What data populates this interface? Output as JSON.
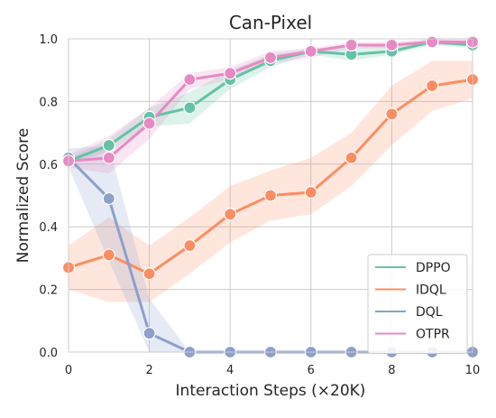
{
  "chart_data": {
    "type": "line",
    "title": "Can-Pixel",
    "xlabel": "Interaction Steps (×20K)",
    "ylabel": "Normalized Score",
    "xlim": [
      0,
      10
    ],
    "ylim": [
      0,
      1.0
    ],
    "x_ticks": [
      "0",
      "2",
      "4",
      "6",
      "8",
      "10"
    ],
    "y_ticks": [
      "0.0",
      "0.2",
      "0.4",
      "0.6",
      "0.8",
      "1.0"
    ],
    "x_tick_values": [
      0,
      2,
      4,
      6,
      8,
      10
    ],
    "y_tick_values": [
      0,
      0.2,
      0.4,
      0.6,
      0.8,
      1.0
    ],
    "grid": true,
    "legend_position": "lower-right",
    "x": [
      0,
      1,
      2,
      3,
      4,
      5,
      6,
      7,
      8,
      9,
      10
    ],
    "series": [
      {
        "name": "DPPO",
        "color": "#66c2a5",
        "values": [
          0.61,
          0.66,
          0.75,
          0.78,
          0.87,
          0.93,
          0.96,
          0.95,
          0.96,
          0.99,
          0.98
        ],
        "lower": [
          0.6,
          0.64,
          0.72,
          0.73,
          0.84,
          0.91,
          0.95,
          0.93,
          0.95,
          0.98,
          0.97
        ],
        "upper": [
          0.62,
          0.68,
          0.78,
          0.83,
          0.9,
          0.95,
          0.97,
          0.97,
          0.98,
          1.0,
          0.99
        ]
      },
      {
        "name": "IDQL",
        "color": "#fc8d62",
        "values": [
          0.27,
          0.31,
          0.25,
          0.34,
          0.44,
          0.5,
          0.51,
          0.62,
          0.76,
          0.85,
          0.87
        ],
        "lower": [
          0.2,
          0.16,
          0.16,
          0.25,
          0.35,
          0.42,
          0.44,
          0.53,
          0.66,
          0.77,
          0.81
        ],
        "upper": [
          0.34,
          0.43,
          0.34,
          0.43,
          0.53,
          0.58,
          0.62,
          0.7,
          0.85,
          0.93,
          0.93
        ]
      },
      {
        "name": "DQL",
        "color": "#8da0cb",
        "values": [
          0.62,
          0.49,
          0.06,
          0.0,
          0.0,
          0.0,
          0.0,
          0.0,
          0.0,
          0.0,
          0.0
        ],
        "lower": [
          0.59,
          0.29,
          0.0,
          0.0,
          0.0,
          0.0,
          0.0,
          0.0,
          0.0,
          0.0,
          0.0
        ],
        "upper": [
          0.65,
          0.66,
          0.17,
          0.0,
          0.0,
          0.0,
          0.0,
          0.0,
          0.0,
          0.0,
          0.0
        ]
      },
      {
        "name": "OTPR",
        "color": "#e78ac3",
        "values": [
          0.61,
          0.62,
          0.73,
          0.87,
          0.89,
          0.94,
          0.96,
          0.98,
          0.98,
          0.99,
          0.99
        ],
        "lower": [
          0.59,
          0.57,
          0.68,
          0.84,
          0.87,
          0.92,
          0.94,
          0.97,
          0.97,
          0.98,
          0.98
        ],
        "upper": [
          0.63,
          0.69,
          0.78,
          0.89,
          0.91,
          0.96,
          0.97,
          0.99,
          0.99,
          1.0,
          1.0
        ]
      }
    ]
  }
}
